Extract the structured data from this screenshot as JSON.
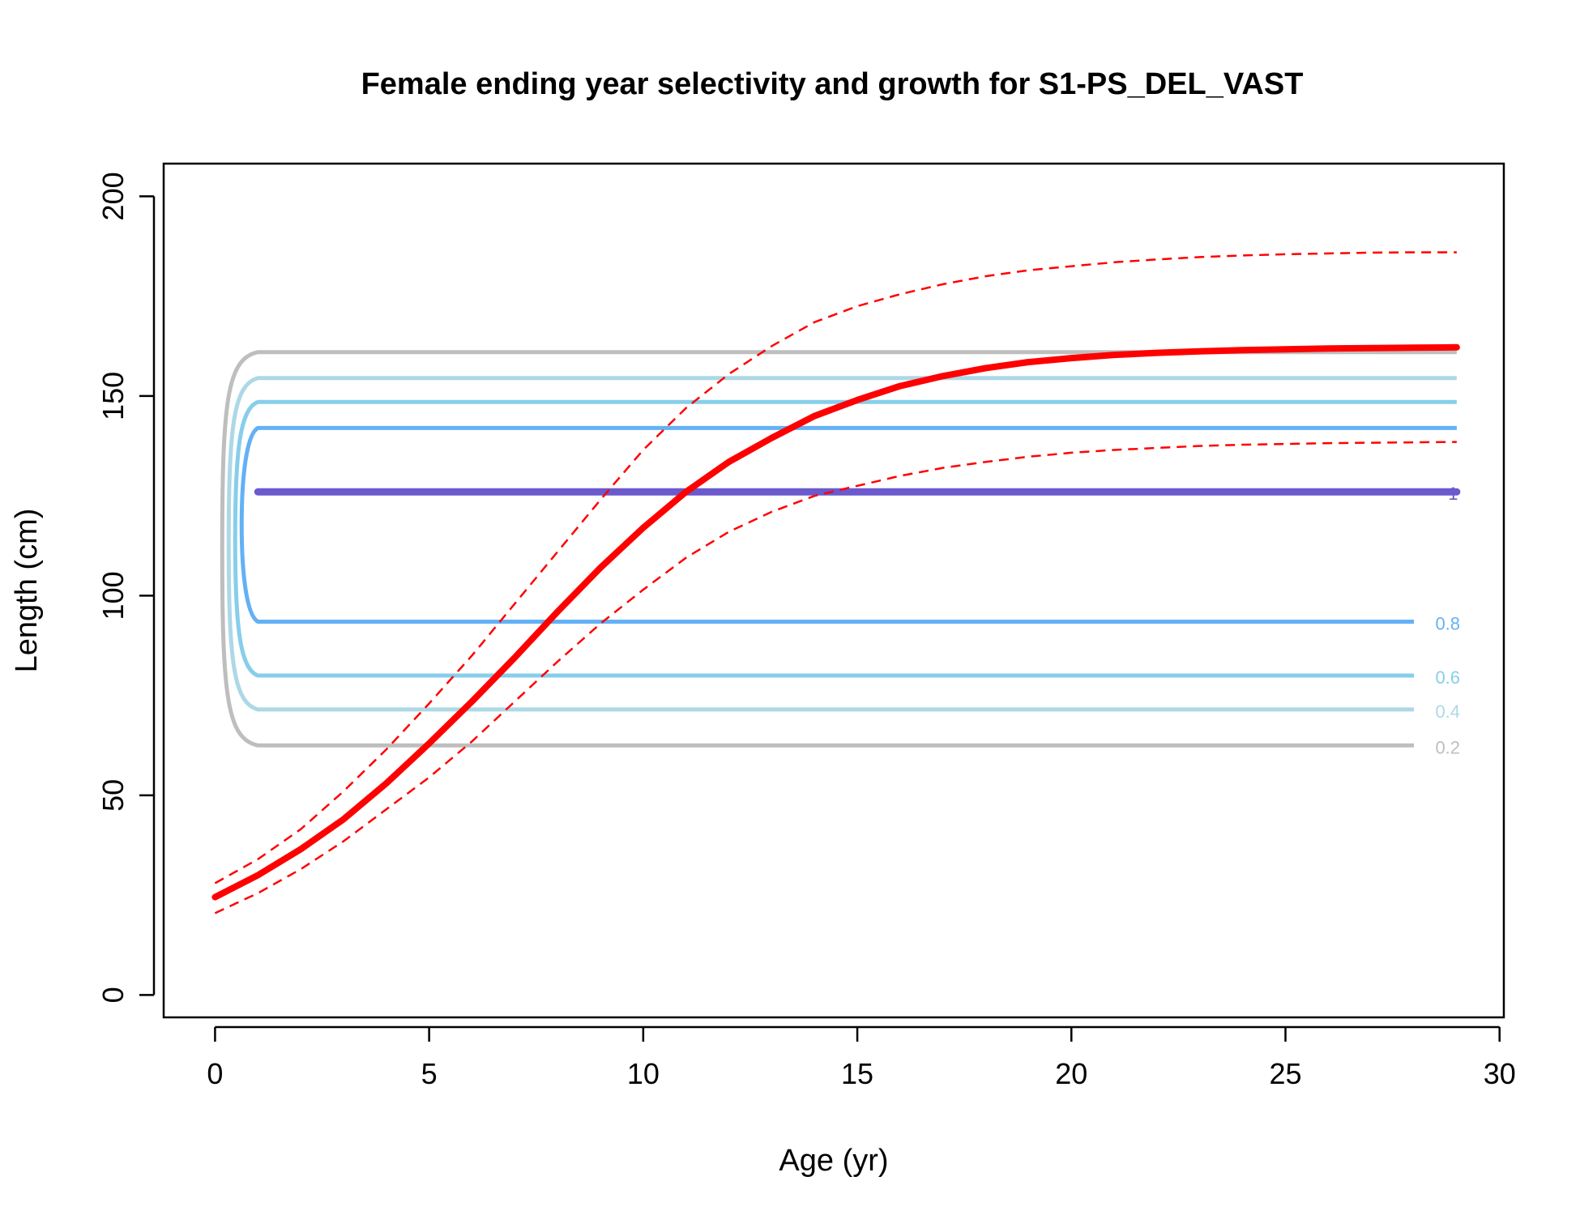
{
  "chart_data": {
    "type": "line",
    "title": "Female ending year selectivity and growth for S1-PS_DEL_VAST",
    "xlabel": "Age (yr)",
    "ylabel": "Length (cm)",
    "xlim": [
      -1.2,
      30.1
    ],
    "ylim": [
      -5.6,
      208.2
    ],
    "x_ticks": [
      0,
      5,
      10,
      15,
      20,
      25,
      30
    ],
    "x_tick_labels": [
      "0",
      "5",
      "10",
      "15",
      "20",
      "25",
      "30"
    ],
    "y_ticks": [
      0,
      50,
      100,
      150,
      200
    ],
    "y_tick_labels": [
      "0",
      "50",
      "100",
      "150",
      "200"
    ],
    "grid": false,
    "colors": {
      "growth": "#ff0000",
      "contour_0_2": "#bebebe",
      "contour_0_4": "#add8e6",
      "contour_0_6": "#87ceeb",
      "contour_0_8": "#63b1f5",
      "contour_1": "#6a5acd"
    },
    "growth_mean": {
      "x": [
        0,
        1,
        2,
        3,
        4,
        5,
        6,
        7,
        8,
        9,
        10,
        11,
        12,
        13,
        14,
        15,
        16,
        17,
        18,
        19,
        20,
        21,
        22,
        23,
        24,
        25,
        26,
        27,
        28,
        29
      ],
      "y": [
        24.5,
        30.0,
        36.5,
        44.0,
        53.0,
        63.0,
        73.5,
        84.5,
        96.0,
        107.0,
        117.0,
        126.0,
        133.5,
        139.5,
        145.0,
        149.0,
        152.5,
        155.0,
        157.0,
        158.5,
        159.5,
        160.3,
        160.8,
        161.2,
        161.5,
        161.7,
        161.9,
        162.0,
        162.1,
        162.2
      ]
    },
    "growth_upper": {
      "x": [
        0,
        1,
        2,
        3,
        4,
        5,
        6,
        7,
        8,
        9,
        10,
        11,
        12,
        13,
        14,
        15,
        16,
        17,
        18,
        19,
        20,
        21,
        22,
        23,
        24,
        25,
        26,
        27,
        28,
        29
      ],
      "y": [
        28.0,
        34.0,
        41.5,
        51.0,
        61.5,
        73.0,
        85.0,
        98.0,
        111.0,
        124.0,
        136.5,
        147.0,
        155.5,
        162.5,
        168.5,
        172.5,
        175.5,
        178.0,
        180.0,
        181.5,
        182.5,
        183.5,
        184.2,
        184.8,
        185.2,
        185.5,
        185.7,
        185.9,
        186.0,
        186.0
      ]
    },
    "growth_lower": {
      "x": [
        0,
        1,
        2,
        3,
        4,
        5,
        6,
        7,
        8,
        9,
        10,
        11,
        12,
        13,
        14,
        15,
        16,
        17,
        18,
        19,
        20,
        21,
        22,
        23,
        24,
        25,
        26,
        27,
        28,
        29
      ],
      "y": [
        20.5,
        25.5,
        31.5,
        38.5,
        46.5,
        54.5,
        63.5,
        73.5,
        83.5,
        93.0,
        101.5,
        109.5,
        116.0,
        121.0,
        125.0,
        127.5,
        130.0,
        132.0,
        133.5,
        134.8,
        135.8,
        136.5,
        137.0,
        137.5,
        137.8,
        138.0,
        138.2,
        138.3,
        138.4,
        138.5
      ]
    },
    "selectivity_contours": [
      {
        "level": 0.2,
        "label": "0.2",
        "min_age": 1,
        "max_age": 29,
        "length_low": 62.5,
        "length_high": 161.0
      },
      {
        "level": 0.4,
        "label": "0.4",
        "min_age": 1,
        "max_age": 29,
        "length_low": 71.5,
        "length_high": 154.5
      },
      {
        "level": 0.6,
        "label": "0.6",
        "min_age": 1,
        "max_age": 29,
        "length_low": 80.0,
        "length_high": 148.5
      },
      {
        "level": 0.8,
        "label": "0.8",
        "min_age": 1,
        "max_age": 29,
        "length_low": 93.5,
        "length_high": 142.0
      },
      {
        "level": 1,
        "label": "1",
        "min_age": 1,
        "max_age": 29,
        "length_low": 126.0,
        "length_high": 126.0
      }
    ]
  }
}
